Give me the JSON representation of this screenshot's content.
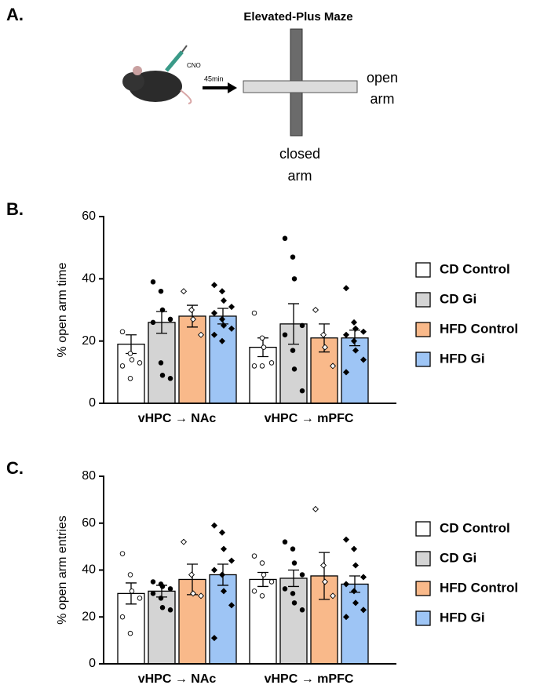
{
  "panel_labels": [
    "A.",
    "B.",
    "C."
  ],
  "diagram": {
    "title": "Elevated-Plus Maze",
    "drug": "CNO",
    "delay": "45min",
    "open_arm": [
      "open",
      "arm"
    ],
    "closed_arm": [
      "closed",
      "arm"
    ]
  },
  "chart_data": [
    {
      "type": "bar",
      "ylabel": "% open arm time",
      "categories": [
        "vHPC → NAc",
        "vHPC → mPFC"
      ],
      "ylim": [
        0,
        60
      ],
      "yticks": [
        0,
        20,
        40,
        60
      ],
      "series": [
        {
          "name": "CD Control",
          "color": "#ffffff",
          "marker": "open-circle",
          "values": [
            19,
            18
          ],
          "errors": [
            3,
            3
          ],
          "points": [
            [
              23,
              16,
              14,
              13,
              12,
              8
            ],
            [
              29,
              21,
              18,
              13,
              12,
              12
            ]
          ]
        },
        {
          "name": "CD Gi",
          "color": "#d4d4d4",
          "marker": "filled-circle",
          "values": [
            26,
            25.5
          ],
          "errors": [
            3.5,
            6.5
          ],
          "points": [
            [
              39,
              36,
              30,
              27,
              26,
              13,
              9,
              8
            ],
            [
              53,
              47,
              40,
              25,
              22,
              17,
              11,
              4
            ]
          ]
        },
        {
          "name": "HFD Control",
          "color": "#f9b98a",
          "marker": "open-diamond",
          "values": [
            28,
            21
          ],
          "errors": [
            3.5,
            4.5
          ],
          "points": [
            [
              36,
              30,
              27,
              22
            ],
            [
              30,
              22,
              18,
              12
            ]
          ]
        },
        {
          "name": "HFD Gi",
          "color": "#9ec5f5",
          "marker": "filled-diamond",
          "values": [
            28,
            21
          ],
          "errors": [
            2.5,
            2.5
          ],
          "points": [
            [
              38,
              36,
              33,
              31,
              29,
              27,
              25,
              24,
              22,
              20
            ],
            [
              37,
              26,
              24,
              23,
              22,
              20,
              17,
              14,
              10
            ]
          ]
        }
      ]
    },
    {
      "type": "bar",
      "ylabel": "% open arm entries",
      "categories": [
        "vHPC → NAc",
        "vHPC → mPFC"
      ],
      "ylim": [
        0,
        80
      ],
      "yticks": [
        0,
        20,
        40,
        60,
        80
      ],
      "series": [
        {
          "name": "CD Control",
          "color": "#ffffff",
          "marker": "open-circle",
          "values": [
            30,
            36
          ],
          "errors": [
            4.5,
            3
          ],
          "points": [
            [
              47,
              38,
              31,
              28,
              20,
              13
            ],
            [
              46,
              43,
              38,
              35,
              31,
              29
            ]
          ]
        },
        {
          "name": "CD Gi",
          "color": "#d4d4d4",
          "marker": "filled-circle",
          "values": [
            31,
            36.5
          ],
          "errors": [
            2.5,
            3.5
          ],
          "points": [
            [
              35,
              34,
              33,
              32,
              30,
              28,
              24,
              23
            ],
            [
              52,
              49,
              43,
              38,
              32,
              30,
              26,
              23
            ]
          ]
        },
        {
          "name": "HFD Control",
          "color": "#f9b98a",
          "marker": "open-diamond",
          "values": [
            36,
            37.5
          ],
          "errors": [
            6.5,
            10
          ],
          "points": [
            [
              52,
              38,
              30,
              29
            ],
            [
              66,
              42,
              35,
              29
            ]
          ]
        },
        {
          "name": "HFD Gi",
          "color": "#9ec5f5",
          "marker": "filled-diamond",
          "values": [
            38,
            34
          ],
          "errors": [
            4.5,
            3.5
          ],
          "points": [
            [
              59,
              56,
              49,
              44,
              40,
              38,
              31,
              25,
              11
            ],
            [
              53,
              49,
              42,
              37,
              34,
              31,
              26,
              23,
              20
            ]
          ]
        }
      ]
    }
  ]
}
